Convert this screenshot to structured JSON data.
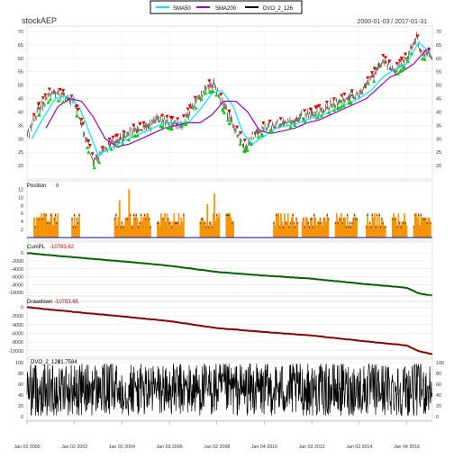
{
  "chart_data": {
    "type": "line",
    "title": "stockAEP",
    "date_range": "2000-01-03 / 2017-01-31",
    "legend": [
      {
        "label": "SMA50",
        "color": "#00e5ff"
      },
      {
        "label": "SMA200",
        "color": "#9900cc"
      },
      {
        "label": "DVO_2_126",
        "color": "#000000"
      }
    ],
    "x_ticks": [
      "Jan 03 2000",
      "Jan 02 2002",
      "Jan 02 2004",
      "Jan 03 2006",
      "Jan 02 2008",
      "Jan 04 2010",
      "Jan 03 2012",
      "Jan 02 2014",
      "Jan 04 2016"
    ],
    "panels": [
      {
        "id": "price",
        "type": "candlestick+line",
        "ylim": [
          15,
          72
        ],
        "yticks": [
          "20",
          "25",
          "30",
          "35",
          "40",
          "45",
          "50",
          "55",
          "60",
          "65",
          "70"
        ],
        "grid": true,
        "series": [
          {
            "name": "Close",
            "color": "#000000",
            "x": [
              2000.0,
              2000.5,
              2001.0,
              2001.5,
              2002.0,
              2002.5,
              2002.8,
              2003.2,
              2003.5,
              2004.0,
              2004.5,
              2005.0,
              2005.5,
              2006.0,
              2006.5,
              2007.0,
              2007.5,
              2007.9,
              2008.3,
              2008.8,
              2009.2,
              2009.6,
              2010.0,
              2010.5,
              2011.0,
              2011.5,
              2012.0,
              2012.5,
              2013.0,
              2013.5,
              2014.0,
              2014.5,
              2015.0,
              2015.5,
              2016.0,
              2016.4,
              2016.6,
              2017.08
            ],
            "y": [
              31,
              41,
              47,
              46,
              43,
              30,
              21,
              25,
              28,
              30,
              33,
              34,
              37,
              36,
              35,
              42,
              49,
              50,
              42,
              33,
              27,
              32,
              34,
              35,
              36,
              38,
              39,
              41,
              43,
              45,
              47,
              52,
              59,
              55,
              60,
              68,
              62,
              61
            ]
          },
          {
            "name": "SMA50",
            "color": "#00e5ff",
            "x": [
              2000.2,
              2000.7,
              2001.2,
              2001.7,
              2002.2,
              2002.6,
              2003.0,
              2003.4,
              2003.8,
              2004.3,
              2004.8,
              2005.3,
              2005.8,
              2006.3,
              2006.8,
              2007.3,
              2007.8,
              2008.2,
              2008.7,
              2009.1,
              2009.5,
              2010.0,
              2010.5,
              2011.0,
              2011.5,
              2012.0,
              2012.5,
              2013.0,
              2013.5,
              2014.0,
              2014.5,
              2015.0,
              2015.5,
              2016.0,
              2016.5,
              2017.0
            ],
            "y": [
              30,
              38,
              45,
              46,
              42,
              33,
              24,
              26,
              28,
              30,
              32,
              34,
              36,
              36,
              36,
              41,
              47,
              48,
              42,
              32,
              28,
              31,
              34,
              35,
              36,
              38,
              39,
              41,
              43,
              45,
              48,
              53,
              56,
              58,
              66,
              62
            ]
          },
          {
            "name": "SMA200",
            "color": "#9900cc",
            "x": [
              2000.8,
              2001.3,
              2001.8,
              2002.3,
              2002.8,
              2003.3,
              2003.8,
              2004.3,
              2004.8,
              2005.3,
              2005.8,
              2006.3,
              2006.8,
              2007.3,
              2007.8,
              2008.3,
              2008.8,
              2009.3,
              2009.8,
              2010.3,
              2010.8,
              2011.3,
              2011.8,
              2012.3,
              2012.8,
              2013.3,
              2013.8,
              2014.3,
              2014.8,
              2015.3,
              2015.8,
              2016.3,
              2016.8,
              2017.0
            ],
            "y": [
              34,
              42,
              45,
              44,
              38,
              30,
              27,
              28,
              30,
              32,
              34,
              35,
              36,
              36,
              39,
              44,
              44,
              40,
              33,
              32,
              33,
              34,
              36,
              37,
              39,
              41,
              43,
              45,
              49,
              53,
              55,
              58,
              63,
              63
            ]
          }
        ]
      },
      {
        "id": "position",
        "label": "Position",
        "label_value": "0",
        "ylim": [
          0,
          13
        ],
        "yticks": [
          "2",
          "4",
          "6",
          "8",
          "10",
          "12"
        ]
      },
      {
        "id": "cumpl",
        "label": "CumPL",
        "label_value": "-10783.62",
        "ylim": [
          -11800,
          500
        ],
        "yticks": [
          "0",
          "-2000",
          "-4000",
          "-6000",
          "-8000",
          "-10000"
        ],
        "series": [
          {
            "name": "CumPL",
            "color": "#006400",
            "x": [
              2000.0,
              2002.0,
              2004.0,
              2006.0,
              2008.0,
              2010.0,
              2012.0,
              2014.0,
              2016.0,
              2016.5,
              2017.08
            ],
            "y": [
              0,
              -1100,
              -2100,
              -3200,
              -4800,
              -5700,
              -6500,
              -7700,
              -8800,
              -10200,
              -10783.62
            ]
          }
        ]
      },
      {
        "id": "drawdown",
        "label": "Drawdown",
        "label_value": "-10783.65",
        "ylim": [
          -11500,
          500
        ],
        "yticks": [
          "0",
          "-2000",
          "-4000",
          "-6000",
          "-8000",
          "-10000"
        ],
        "series": [
          {
            "name": "Drawdown",
            "color": "#8b0000",
            "x": [
              2000.0,
              2002.0,
              2004.0,
              2006.0,
              2008.0,
              2010.0,
              2012.0,
              2014.0,
              2016.0,
              2016.5,
              2017.08
            ],
            "y": [
              0,
              -1100,
              -2100,
              -3200,
              -4800,
              -5700,
              -6500,
              -7700,
              -8800,
              -10100,
              -10783.65
            ]
          }
        ]
      },
      {
        "id": "dvo",
        "label": "DVO_2_126",
        "label_value": "21.7584",
        "ylim": [
          0,
          100
        ],
        "yticks": [
          "0",
          "20",
          "40",
          "60",
          "80",
          "100"
        ]
      }
    ]
  }
}
